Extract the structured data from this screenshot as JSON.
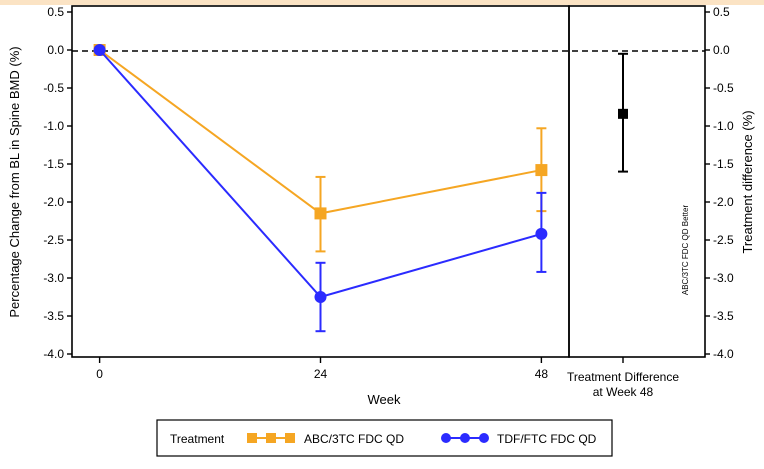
{
  "chart_data": {
    "type": "line",
    "xlabel": "Week",
    "ylabel": "Percentage Change from BL in Spine BMD (%)",
    "ylabel_right": "Treatment difference (%)",
    "x_ticks": [
      0,
      24,
      48
    ],
    "x_tick_labels": [
      "0",
      "24",
      "48"
    ],
    "x_range": [
      -3,
      51
    ],
    "ylim": [
      -4.0,
      0.5
    ],
    "y_ticks": [
      0.5,
      0.0,
      -0.5,
      -1.0,
      -1.5,
      -2.0,
      -2.5,
      -3.0,
      -3.5,
      -4.0
    ],
    "y_tick_labels": [
      "0.5",
      "0.0",
      "-0.5",
      "-1.0",
      "-1.5",
      "-2.0",
      "-2.5",
      "-3.0",
      "-3.5",
      "-4.0"
    ],
    "reference_line_y": 0.0,
    "grid": false,
    "series": [
      {
        "name": "ABC/3TC FDC QD",
        "color": "#f5a623",
        "marker": "square",
        "x": [
          0,
          24,
          48
        ],
        "y": [
          0.0,
          -2.15,
          -1.58
        ],
        "err_low": [
          0.0,
          -2.65,
          -2.12
        ],
        "err_high": [
          0.0,
          -1.67,
          -1.03
        ]
      },
      {
        "name": "TDF/FTC FDC QD",
        "color": "#2b2bff",
        "marker": "circle",
        "x": [
          0,
          24,
          48
        ],
        "y": [
          0.0,
          -3.25,
          -2.42
        ],
        "err_low": [
          0.0,
          -3.7,
          -2.92
        ],
        "err_high": [
          0.0,
          -2.8,
          -1.88
        ]
      }
    ],
    "treatment_difference": {
      "label_line1": "Treatment Difference",
      "label_line2": "at Week 48",
      "estimate": -0.84,
      "ci_low": -1.6,
      "ci_high": -0.05,
      "color": "#000000",
      "annotation": "ABC/3TC FDC QD Better"
    },
    "legend": {
      "title": "Treatment",
      "position": "bottom",
      "entries": [
        "ABC/3TC FDC QD",
        "TDF/FTC FDC QD"
      ]
    }
  }
}
